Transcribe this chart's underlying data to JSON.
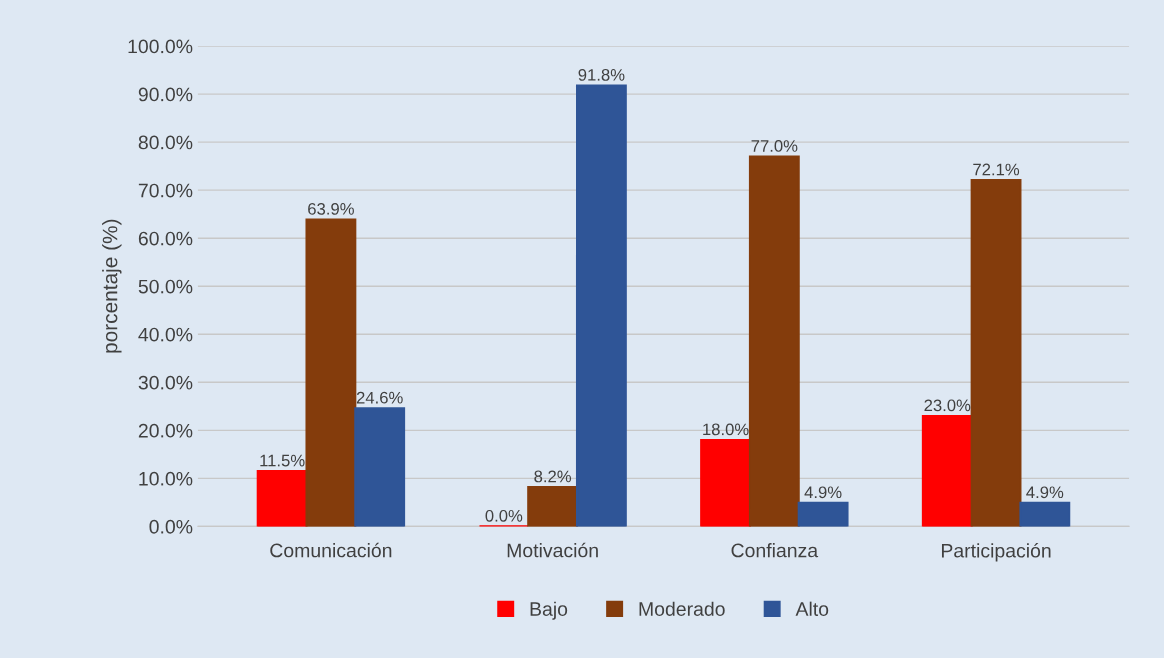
{
  "chart_data": {
    "type": "bar",
    "ylabel": "porcentaje (%)",
    "categories": [
      "Comunicación",
      "Motivación",
      "Confianza",
      "Participación"
    ],
    "series": [
      {
        "name": "Bajo",
        "color": "#ff0000",
        "values": [
          11.5,
          0.0,
          18.0,
          23.0
        ],
        "value_labels": [
          "11.5%",
          "0.0%",
          "18.0%",
          "23.0%"
        ]
      },
      {
        "name": "Moderado",
        "color": "#843c0c",
        "values": [
          63.9,
          8.2,
          77.0,
          72.1
        ],
        "value_labels": [
          "63.9%",
          "8.2%",
          "77.0%",
          "72.1%"
        ]
      },
      {
        "name": "Alto",
        "color": "#2f5597",
        "values": [
          24.6,
          91.8,
          4.9,
          4.9
        ],
        "value_labels": [
          "24.6%",
          "91.8%",
          "4.9%",
          "4.9%"
        ]
      }
    ],
    "ylim": [
      0,
      100
    ],
    "yticks": [
      {
        "value": 0,
        "label": "0.0%"
      },
      {
        "value": 10,
        "label": "10.0%"
      },
      {
        "value": 20,
        "label": "20.0%"
      },
      {
        "value": 30,
        "label": "30.0%"
      },
      {
        "value": 40,
        "label": "40.0%"
      },
      {
        "value": 50,
        "label": "50.0%"
      },
      {
        "value": 60,
        "label": "60.0%"
      },
      {
        "value": 70,
        "label": "70.0%"
      },
      {
        "value": 80,
        "label": "80.0%"
      },
      {
        "value": 90,
        "label": "90.0%"
      },
      {
        "value": 100,
        "label": "100.0%"
      }
    ],
    "grid": "y",
    "legend": "bottom"
  }
}
